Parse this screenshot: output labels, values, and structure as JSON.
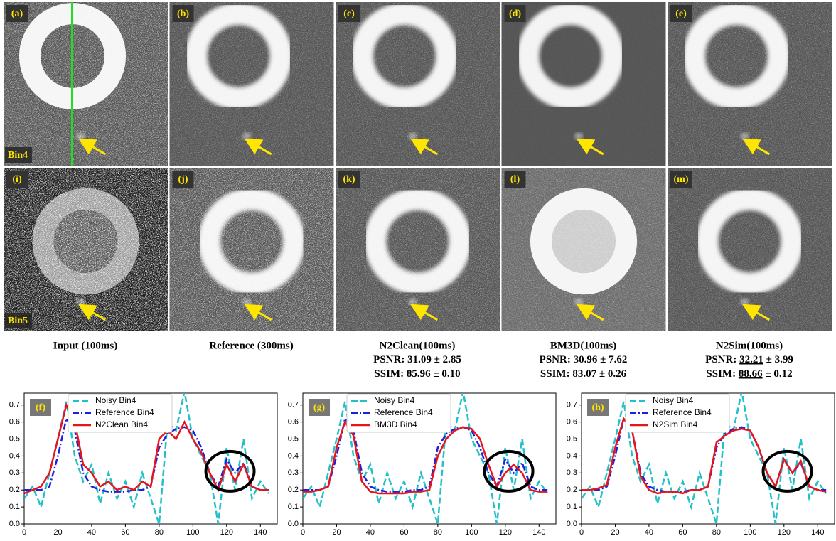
{
  "panels": [
    {
      "label": "(a)",
      "tag": "Bin4"
    },
    {
      "label": "(b)"
    },
    {
      "label": "(c)"
    },
    {
      "label": "(d)"
    },
    {
      "label": "(e)"
    },
    {
      "label": "(i)",
      "tag": "Bin5"
    },
    {
      "label": "(j)"
    },
    {
      "label": "(k)"
    },
    {
      "label": "(l)"
    },
    {
      "label": "(m)"
    }
  ],
  "captions": [
    {
      "title": "Input (100ms)"
    },
    {
      "title": "Reference (300ms)"
    },
    {
      "title": "N2Clean(100ms)",
      "metrics": [
        {
          "parts": [
            "PSNR: ",
            "31.09",
            " ± 2.85"
          ],
          "underline_mean": false
        },
        {
          "parts": [
            "SSIM: ",
            "85.96",
            " ± 0.10"
          ],
          "underline_mean": false
        }
      ]
    },
    {
      "title": "BM3D(100ms)",
      "metrics": [
        {
          "parts": [
            "PSNR: ",
            "30.96",
            " ± 7.62"
          ],
          "underline_mean": false
        },
        {
          "parts": [
            "SSIM: ",
            "83.07",
            " ± 0.26"
          ],
          "underline_mean": false
        }
      ]
    },
    {
      "title": "N2Sim(100ms)",
      "metrics": [
        {
          "parts": [
            "PSNR: ",
            "32.21",
            " ± 3.99"
          ],
          "underline_mean": true
        },
        {
          "parts": [
            "SSIM: ",
            "88.66",
            " ± 0.12"
          ],
          "underline_mean": true
        }
      ]
    }
  ],
  "chart_data": [
    {
      "type": "line",
      "panel_label": "(f)",
      "x": [
        0,
        5,
        10,
        15,
        20,
        25,
        30,
        35,
        40,
        45,
        50,
        55,
        60,
        65,
        70,
        75,
        80,
        85,
        90,
        95,
        100,
        105,
        110,
        115,
        120,
        125,
        130,
        135,
        140,
        145
      ],
      "series": [
        {
          "name": "Noisy Bin4",
          "color": "#22c0c8",
          "linestyle": "dashed",
          "values": [
            0.15,
            0.22,
            0.1,
            0.3,
            0.5,
            0.72,
            0.4,
            0.25,
            0.35,
            0.12,
            0.3,
            0.15,
            0.25,
            0.1,
            0.3,
            0.15,
            0.0,
            0.6,
            0.55,
            0.78,
            0.5,
            0.4,
            0.3,
            0.0,
            0.45,
            0.2,
            0.5,
            0.15,
            0.25,
            0.18
          ]
        },
        {
          "name": "Reference Bin4",
          "color": "#1f1fe0",
          "linestyle": "dashdot",
          "values": [
            0.2,
            0.2,
            0.2,
            0.22,
            0.4,
            0.62,
            0.55,
            0.3,
            0.22,
            0.2,
            0.19,
            0.19,
            0.19,
            0.2,
            0.2,
            0.22,
            0.45,
            0.53,
            0.56,
            0.57,
            0.55,
            0.45,
            0.3,
            0.22,
            0.38,
            0.3,
            0.36,
            0.22,
            0.2,
            0.2
          ]
        },
        {
          "name": "N2Clean Bin4",
          "color": "#e8141c",
          "linestyle": "solid",
          "values": [
            0.18,
            0.2,
            0.22,
            0.3,
            0.5,
            0.7,
            0.6,
            0.35,
            0.3,
            0.22,
            0.25,
            0.2,
            0.22,
            0.2,
            0.25,
            0.22,
            0.5,
            0.55,
            0.5,
            0.6,
            0.5,
            0.42,
            0.3,
            0.2,
            0.35,
            0.25,
            0.35,
            0.22,
            0.2,
            0.2
          ]
        }
      ],
      "xlim": [
        0,
        150
      ],
      "ylim": [
        0,
        0.77
      ],
      "xticks": [
        0,
        20,
        40,
        60,
        80,
        100,
        120,
        140
      ],
      "yticks": [
        0.0,
        0.1,
        0.2,
        0.3,
        0.4,
        0.5,
        0.6,
        0.7
      ],
      "legend": "upper left"
    },
    {
      "type": "line",
      "panel_label": "(g)",
      "x": [
        0,
        5,
        10,
        15,
        20,
        25,
        30,
        35,
        40,
        45,
        50,
        55,
        60,
        65,
        70,
        75,
        80,
        85,
        90,
        95,
        100,
        105,
        110,
        115,
        120,
        125,
        130,
        135,
        140,
        145
      ],
      "series": [
        {
          "name": "Noisy Bin4",
          "color": "#22c0c8",
          "linestyle": "dashed",
          "values": [
            0.15,
            0.22,
            0.1,
            0.3,
            0.5,
            0.72,
            0.4,
            0.25,
            0.35,
            0.12,
            0.3,
            0.15,
            0.25,
            0.1,
            0.3,
            0.15,
            0.0,
            0.6,
            0.55,
            0.78,
            0.5,
            0.4,
            0.3,
            0.0,
            0.45,
            0.2,
            0.5,
            0.15,
            0.25,
            0.18
          ]
        },
        {
          "name": "Reference Bin4",
          "color": "#1f1fe0",
          "linestyle": "dashdot",
          "values": [
            0.2,
            0.2,
            0.2,
            0.22,
            0.4,
            0.62,
            0.55,
            0.3,
            0.22,
            0.2,
            0.19,
            0.19,
            0.19,
            0.2,
            0.2,
            0.22,
            0.45,
            0.53,
            0.56,
            0.57,
            0.55,
            0.45,
            0.3,
            0.22,
            0.38,
            0.3,
            0.36,
            0.22,
            0.2,
            0.2
          ]
        },
        {
          "name": "BM3D Bin4",
          "color": "#e8141c",
          "linestyle": "solid",
          "values": [
            0.19,
            0.19,
            0.2,
            0.22,
            0.45,
            0.6,
            0.52,
            0.25,
            0.19,
            0.18,
            0.18,
            0.18,
            0.18,
            0.19,
            0.19,
            0.2,
            0.4,
            0.5,
            0.55,
            0.57,
            0.56,
            0.5,
            0.35,
            0.22,
            0.3,
            0.35,
            0.3,
            0.2,
            0.19,
            0.19
          ]
        }
      ],
      "xlim": [
        0,
        150
      ],
      "ylim": [
        0,
        0.77
      ],
      "xticks": [
        0,
        20,
        40,
        60,
        80,
        100,
        120,
        140
      ],
      "yticks": [
        0.0,
        0.1,
        0.2,
        0.3,
        0.4,
        0.5,
        0.6,
        0.7
      ],
      "legend": "upper left"
    },
    {
      "type": "line",
      "panel_label": "(h)",
      "x": [
        0,
        5,
        10,
        15,
        20,
        25,
        30,
        35,
        40,
        45,
        50,
        55,
        60,
        65,
        70,
        75,
        80,
        85,
        90,
        95,
        100,
        105,
        110,
        115,
        120,
        125,
        130,
        135,
        140,
        145
      ],
      "series": [
        {
          "name": "Noisy Bin4",
          "color": "#22c0c8",
          "linestyle": "dashed",
          "values": [
            0.15,
            0.22,
            0.1,
            0.3,
            0.5,
            0.72,
            0.4,
            0.25,
            0.35,
            0.12,
            0.3,
            0.15,
            0.25,
            0.1,
            0.3,
            0.15,
            0.0,
            0.6,
            0.55,
            0.78,
            0.5,
            0.4,
            0.3,
            0.0,
            0.45,
            0.2,
            0.5,
            0.15,
            0.25,
            0.18
          ]
        },
        {
          "name": "Reference Bin4",
          "color": "#1f1fe0",
          "linestyle": "dashdot",
          "values": [
            0.2,
            0.2,
            0.2,
            0.22,
            0.4,
            0.62,
            0.55,
            0.3,
            0.22,
            0.2,
            0.19,
            0.19,
            0.19,
            0.2,
            0.2,
            0.22,
            0.45,
            0.53,
            0.56,
            0.57,
            0.55,
            0.45,
            0.3,
            0.22,
            0.38,
            0.3,
            0.36,
            0.22,
            0.2,
            0.2
          ]
        },
        {
          "name": "N2Sim Bin4",
          "color": "#e8141c",
          "linestyle": "solid",
          "values": [
            0.2,
            0.2,
            0.21,
            0.23,
            0.45,
            0.62,
            0.55,
            0.28,
            0.2,
            0.18,
            0.19,
            0.19,
            0.18,
            0.2,
            0.2,
            0.22,
            0.48,
            0.52,
            0.55,
            0.56,
            0.55,
            0.45,
            0.3,
            0.22,
            0.38,
            0.3,
            0.37,
            0.22,
            0.2,
            0.19
          ]
        }
      ],
      "xlim": [
        0,
        150
      ],
      "ylim": [
        0,
        0.77
      ],
      "xticks": [
        0,
        20,
        40,
        60,
        80,
        100,
        120,
        140
      ],
      "yticks": [
        0.0,
        0.1,
        0.2,
        0.3,
        0.4,
        0.5,
        0.6,
        0.7
      ],
      "legend": "upper left"
    }
  ]
}
